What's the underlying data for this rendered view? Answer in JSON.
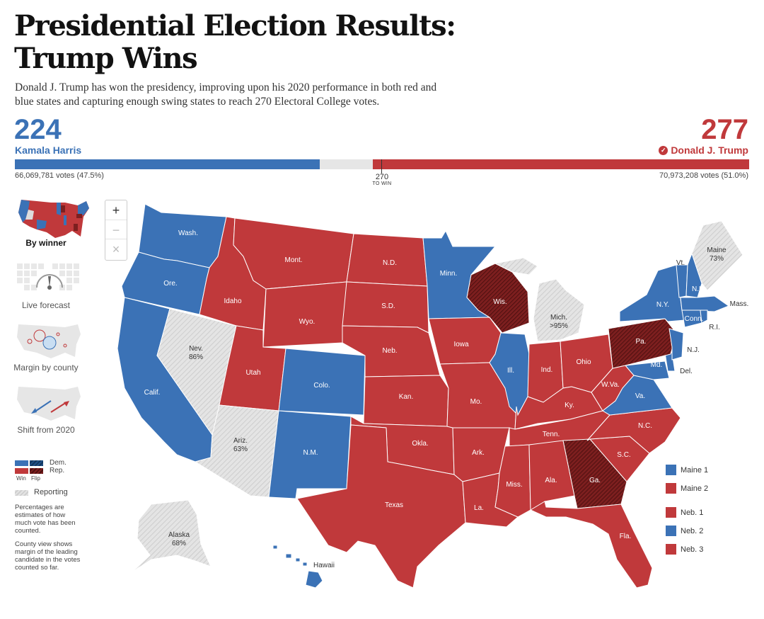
{
  "header": {
    "title_line1": "Presidential Election Results:",
    "title_line2": "Trump Wins",
    "deck": "Donald J. Trump has won the presidency, improving upon his 2020 performance in both red and blue states and capturing enough swing states to reach 270 Electoral College votes."
  },
  "tally": {
    "dem": {
      "ev": "224",
      "name": "Kamala Harris",
      "votes": "66,069,781 votes (47.5%)",
      "share": 0.4148
    },
    "rep": {
      "ev": "277",
      "name": "Donald J. Trump",
      "votes": "70,973,208 votes (51.0%)",
      "share": 0.513
    },
    "to_win_number": "270",
    "to_win_label": "TO WIN",
    "colors": {
      "dem": "#3b72b6",
      "rep": "#c0393b",
      "flip": "#7d1f1f",
      "reporting": "#e4e4e4"
    }
  },
  "views": [
    {
      "label": "By winner",
      "active": true,
      "icon": "us-map-thumbnail-icon"
    },
    {
      "label": "Live forecast",
      "active": false,
      "icon": "forecast-gauge-icon"
    },
    {
      "label": "Margin by county",
      "active": false,
      "icon": "bubble-map-icon"
    },
    {
      "label": "Shift from 2020",
      "active": false,
      "icon": "shift-arrows-map-icon"
    }
  ],
  "legend": {
    "dem": "Dem.",
    "rep": "Rep.",
    "win": "Win",
    "flip": "Flip",
    "reporting": "Reporting",
    "note1": "Percentages are estimates of how much vote has been counted.",
    "note2": "County view shows margin of the leading candidate in the votes counted so far."
  },
  "zoom": {
    "in": "+",
    "out": "−",
    "reset": "×"
  },
  "states": {
    "wa": "Wash.",
    "or": "Ore.",
    "ca": "Calif.",
    "id": "Idaho",
    "nv": "Nev.",
    "nv_pct": "86%",
    "ut": "Utah",
    "az": "Ariz.",
    "az_pct": "63%",
    "mt": "Mont.",
    "wy": "Wyo.",
    "co": "Colo.",
    "nm": "N.M.",
    "nd": "N.D.",
    "sd": "S.D.",
    "ne": "Neb.",
    "ks": "Kan.",
    "ok": "Okla.",
    "tx": "Texas",
    "mn": "Minn.",
    "ia": "Iowa",
    "mo": "Mo.",
    "ar": "Ark.",
    "la": "La.",
    "wi": "Wis.",
    "il": "Ill.",
    "ms": "Miss.",
    "mi": "Mich.",
    "mi_pct": ">95%",
    "in": "Ind.",
    "ky": "Ky.",
    "tn": "Tenn.",
    "al": "Ala.",
    "ga": "Ga.",
    "fl": "Fla.",
    "oh": "Ohio",
    "wv": "W.Va.",
    "va": "Va.",
    "nc": "N.C.",
    "sc": "S.C.",
    "pa": "Pa.",
    "ny": "N.Y.",
    "vt": "Vt.",
    "nh": "N.H.",
    "me": "Maine",
    "me_pct": "73%",
    "ma": "Mass.",
    "ct": "Conn.",
    "ri": "R.I.",
    "nj": "N.J.",
    "de": "Del.",
    "md": "Md.",
    "ak": "Alaska",
    "ak_pct": "68%",
    "hi": "Hawaii"
  },
  "districts": [
    {
      "label": "Maine 1",
      "party": "dem"
    },
    {
      "label": "Maine 2",
      "party": "rep"
    },
    {
      "label": "Neb. 1",
      "party": "rep"
    },
    {
      "label": "Neb. 2",
      "party": "dem"
    },
    {
      "label": "Neb. 3",
      "party": "rep"
    }
  ]
}
